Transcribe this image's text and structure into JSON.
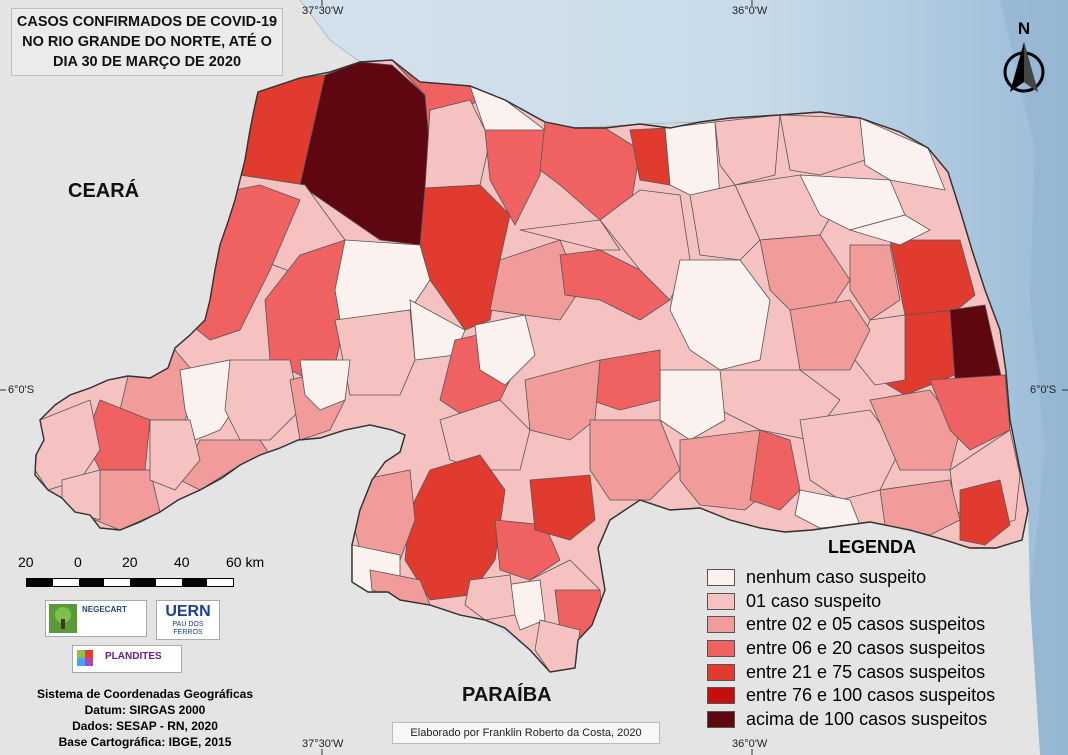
{
  "title_lines": [
    "CASOS CONFIRMADOS DE COVID-19",
    "NO RIO GRANDE DO NORTE, ATÉ O",
    "DIA 30 DE MARÇO DE 2020"
  ],
  "state_labels": {
    "ceara": "CEARÁ",
    "paraiba": "PARAÍBA"
  },
  "coordinates": {
    "top_left": "37°30'W",
    "top_right": "36°0'W",
    "bottom_left": "37°30'W",
    "bottom_right": "36°0'W",
    "left": "6°0'S",
    "right": "6°0'S"
  },
  "north_label": "N",
  "legend": {
    "title": "LEGENDA",
    "items": [
      {
        "label": "nenhum caso suspeito",
        "color": "#fbf1ee"
      },
      {
        "label": "01 caso suspeito",
        "color": "#f6c1c1"
      },
      {
        "label": "entre 02 e 05 casos suspeitos",
        "color": "#f29b9b"
      },
      {
        "label": "entre 06 e 20 casos suspeitos",
        "color": "#f06262"
      },
      {
        "label": "entre 21 e 75 casos suspeitos",
        "color": "#e13b30"
      },
      {
        "label": "entre 76 e 100 casos suspeitos",
        "color": "#c40f0f"
      },
      {
        "label": "acima de 100 casos suspeitos",
        "color": "#5e0710"
      }
    ]
  },
  "scale": {
    "labels": [
      "20",
      "0",
      "20",
      "40",
      "60 km"
    ]
  },
  "logos": {
    "negecart": "NEGECART",
    "uern": "UERN",
    "uern_sub": "PAU DOS FERROS",
    "plandites": "PLANDITES"
  },
  "info_lines": [
    "Sistema de Coordenadas Geográficas",
    "Datum: SIRGAS 2000",
    "Dados: SESAP - RN, 2020",
    "Base Cartográfica: IBGE, 2015"
  ],
  "credit": "Elaborado por Franklin Roberto da Costa, 2020"
}
